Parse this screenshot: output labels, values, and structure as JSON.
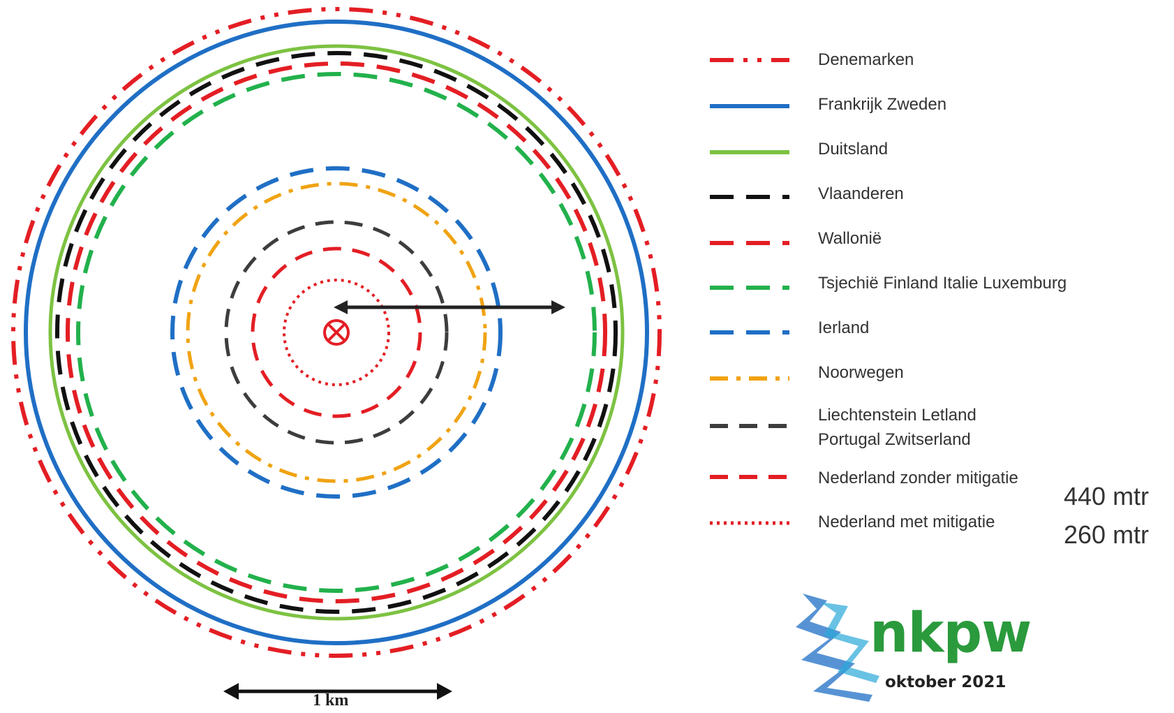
{
  "colors": {
    "red": "#e31e24",
    "blue": "#1f6fc5",
    "light_green": "#7dc242",
    "green": "#22b14c",
    "black": "#111111",
    "dark_gray": "#3d3d3d",
    "orange": "#f0a313",
    "logo_green": "#2a9a3c",
    "logo_blue": "#1f6fc5"
  },
  "legend": [
    {
      "label": "Denemarken",
      "color": "red",
      "style": "dash-dot-dot"
    },
    {
      "label": "Frankrijk Zweden",
      "color": "blue",
      "style": "solid"
    },
    {
      "label": "Duitsland",
      "color": "light_green",
      "style": "solid"
    },
    {
      "label": "Vlaanderen",
      "color": "black",
      "style": "long-dash"
    },
    {
      "label": "Wallonië",
      "color": "red",
      "style": "long-dash"
    },
    {
      "label": "Tsjechië Finland Italie Luxemburg",
      "color": "green",
      "style": "long-dash"
    },
    {
      "label": "Ierland",
      "color": "blue",
      "style": "long-dash"
    },
    {
      "label": "Noorwegen",
      "color": "orange",
      "style": "dash-dot"
    },
    {
      "label": "Liechtenstein Letland",
      "label_line2": "Portugal Zwitserland",
      "color": "dark_gray",
      "style": "dash"
    },
    {
      "label": "Nederland zonder mitigatie",
      "color": "red",
      "style": "dash"
    },
    {
      "label": "Nederland met mitigatie",
      "color": "red",
      "style": "dot"
    }
  ],
  "distances": {
    "first": "440 mtr",
    "second": "260 mtr"
  },
  "scale_bar": {
    "label": "1 km"
  },
  "logo": {
    "name": "nkpw",
    "date": "oktober 2021"
  }
}
